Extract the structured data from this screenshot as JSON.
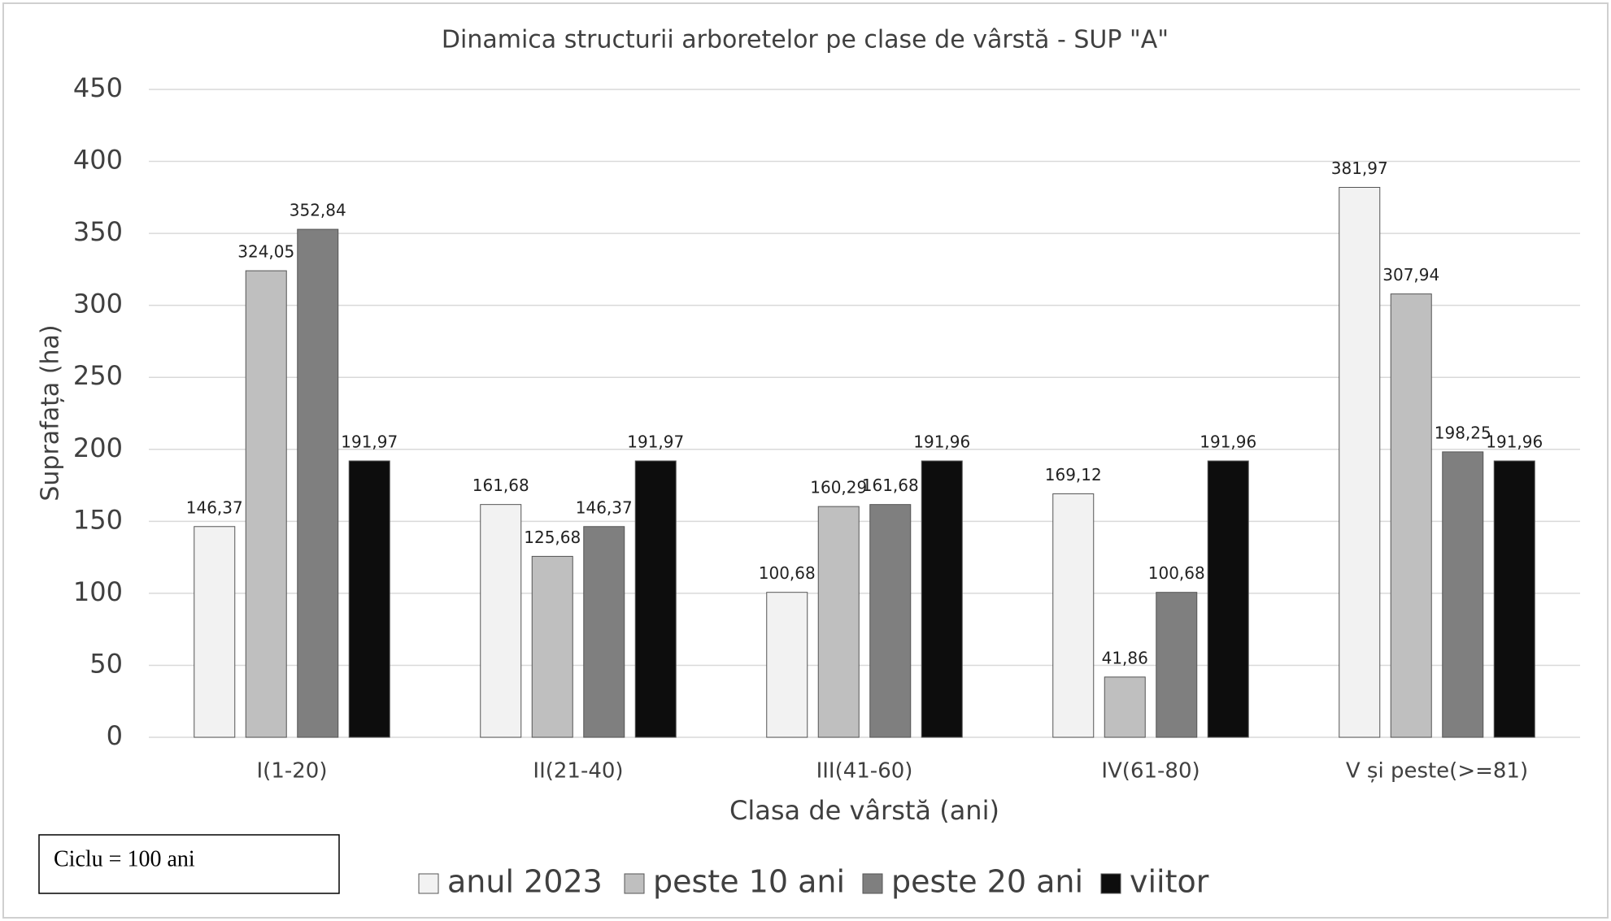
{
  "chart_data": {
    "type": "bar",
    "title": "Dinamica structurii arboretelor pe clase de vârstă - SUP \"A\"",
    "x_label": "Clasa de vârstă (ani)",
    "y_label": "Suprafața (ha)",
    "annotation": "Ciclu = 100 ani",
    "categories": [
      "I(1-20)",
      "II(21-40)",
      "III(41-60)",
      "IV(61-80)",
      "V și peste(>=81)"
    ],
    "series": [
      {
        "name": "anul 2023",
        "color": "#f2f2f2",
        "values": [
          146.37,
          161.68,
          100.68,
          169.12,
          381.97
        ],
        "value_labels": [
          "146,37",
          "161,68",
          "100,68",
          "169,12",
          "381,97"
        ]
      },
      {
        "name": "peste 10 ani",
        "color": "#bfbfbf",
        "values": [
          324.05,
          125.68,
          160.29,
          41.86,
          307.94
        ],
        "value_labels": [
          "324,05",
          "125,68",
          "160,29",
          "41,86",
          "307,94"
        ]
      },
      {
        "name": "peste 20 ani",
        "color": "#7f7f7f",
        "values": [
          352.84,
          146.37,
          161.68,
          100.68,
          198.25
        ],
        "value_labels": [
          "352,84",
          "146,37",
          "161,68",
          "100,68",
          "198,25"
        ]
      },
      {
        "name": "viitor",
        "color": "#0d0d0d",
        "values": [
          191.97,
          191.97,
          191.96,
          191.96,
          191.96
        ],
        "value_labels": [
          "191,97",
          "191,97",
          "191,96",
          "191,96",
          "191,96"
        ]
      }
    ],
    "ylim": [
      0,
      450
    ],
    "yticks": [
      0,
      50,
      100,
      150,
      200,
      250,
      300,
      350,
      400,
      450
    ],
    "grid": true,
    "legend": "bottom"
  }
}
